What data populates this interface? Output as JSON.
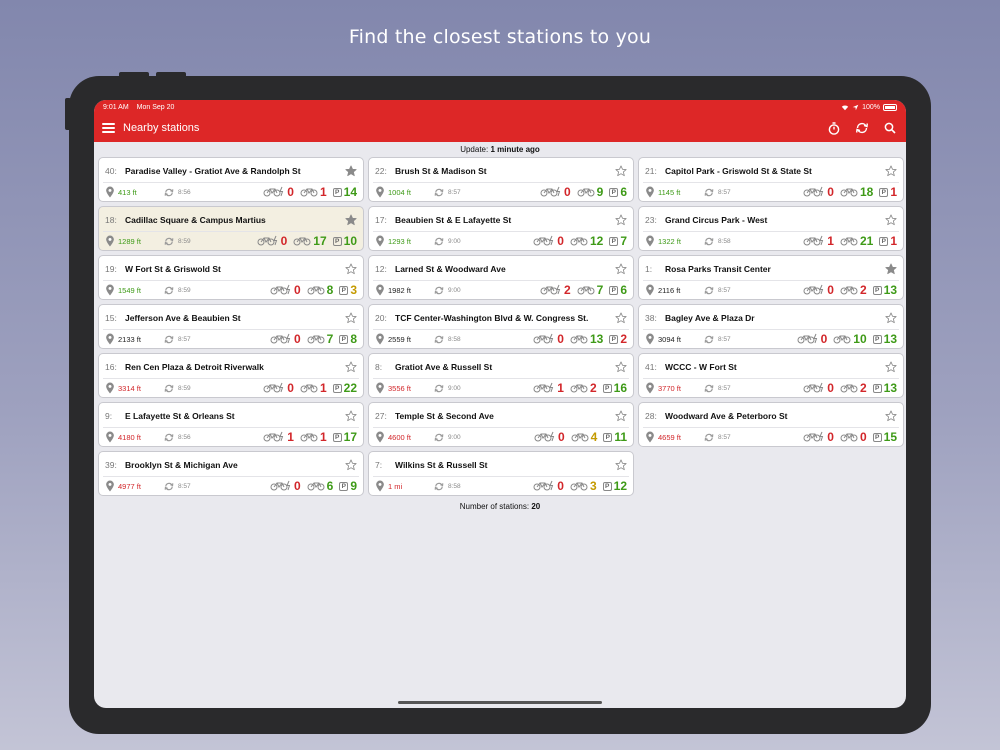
{
  "headline": "Find the closest stations to you",
  "status_bar": {
    "time": "9:01 AM",
    "date": "Mon Sep 20",
    "battery": "100%"
  },
  "app_bar": {
    "title": "Nearby stations"
  },
  "update": {
    "label": "Update:",
    "value": "1 minute ago"
  },
  "footer": {
    "label": "Number of stations:",
    "value": "20"
  },
  "colors": {
    "brand": "#dd2727",
    "good": "#3e9a17",
    "bad": "#d2262a",
    "warn": "#c49a00"
  },
  "stations": [
    {
      "num": "40:",
      "name": "Paradise Valley - Gratiot Ave & Randolph St",
      "dist": "413 ft",
      "dist_color": "green",
      "time": "8:56",
      "ebikes": "0",
      "ebikes_color": "red",
      "bikes": "1",
      "bikes_color": "red",
      "docks": "14",
      "docks_color": "green",
      "fav": true,
      "highlight": false
    },
    {
      "num": "18:",
      "name": "Cadillac Square & Campus Martius",
      "dist": "1289 ft",
      "dist_color": "green",
      "time": "8:59",
      "ebikes": "0",
      "ebikes_color": "red",
      "bikes": "17",
      "bikes_color": "green",
      "docks": "10",
      "docks_color": "green",
      "fav": true,
      "highlight": true
    },
    {
      "num": "19:",
      "name": "W Fort St & Griswold St",
      "dist": "1549 ft",
      "dist_color": "green",
      "time": "8:59",
      "ebikes": "0",
      "ebikes_color": "red",
      "bikes": "8",
      "bikes_color": "green",
      "docks": "3",
      "docks_color": "warn",
      "fav": false,
      "highlight": false
    },
    {
      "num": "15:",
      "name": "Jefferson Ave & Beaubien St",
      "dist": "2133 ft",
      "dist_color": "black",
      "time": "8:57",
      "ebikes": "0",
      "ebikes_color": "red",
      "bikes": "7",
      "bikes_color": "green",
      "docks": "8",
      "docks_color": "green",
      "fav": false,
      "highlight": false
    },
    {
      "num": "16:",
      "name": "Ren Cen Plaza & Detroit Riverwalk",
      "dist": "3314 ft",
      "dist_color": "red",
      "time": "8:59",
      "ebikes": "0",
      "ebikes_color": "red",
      "bikes": "1",
      "bikes_color": "red",
      "docks": "22",
      "docks_color": "green",
      "fav": false,
      "highlight": false
    },
    {
      "num": "9:",
      "name": "E Lafayette St & Orleans St",
      "dist": "4180 ft",
      "dist_color": "red",
      "time": "8:56",
      "ebikes": "1",
      "ebikes_color": "red",
      "bikes": "1",
      "bikes_color": "red",
      "docks": "17",
      "docks_color": "green",
      "fav": false,
      "highlight": false
    },
    {
      "num": "39:",
      "name": "Brooklyn St & Michigan Ave",
      "dist": "4977 ft",
      "dist_color": "red",
      "time": "8:57",
      "ebikes": "0",
      "ebikes_color": "red",
      "bikes": "6",
      "bikes_color": "green",
      "docks": "9",
      "docks_color": "green",
      "fav": false,
      "highlight": false
    },
    {
      "num": "22:",
      "name": "Brush St & Madison St",
      "dist": "1004 ft",
      "dist_color": "green",
      "time": "8:57",
      "ebikes": "0",
      "ebikes_color": "red",
      "bikes": "9",
      "bikes_color": "green",
      "docks": "6",
      "docks_color": "green",
      "fav": false,
      "highlight": false
    },
    {
      "num": "17:",
      "name": "Beaubien St & E Lafayette St",
      "dist": "1293 ft",
      "dist_color": "green",
      "time": "9:00",
      "ebikes": "0",
      "ebikes_color": "red",
      "bikes": "12",
      "bikes_color": "green",
      "docks": "7",
      "docks_color": "green",
      "fav": false,
      "highlight": false
    },
    {
      "num": "12:",
      "name": "Larned St & Woodward Ave",
      "dist": "1982 ft",
      "dist_color": "black",
      "time": "9:00",
      "ebikes": "2",
      "ebikes_color": "red",
      "bikes": "7",
      "bikes_color": "green",
      "docks": "6",
      "docks_color": "green",
      "fav": false,
      "highlight": false
    },
    {
      "num": "20:",
      "name": "TCF Center-Washington Blvd & W. Congress St.",
      "dist": "2559 ft",
      "dist_color": "black",
      "time": "8:58",
      "ebikes": "0",
      "ebikes_color": "red",
      "bikes": "13",
      "bikes_color": "green",
      "docks": "2",
      "docks_color": "red",
      "fav": false,
      "highlight": false
    },
    {
      "num": "8:",
      "name": "Gratiot Ave & Russell St",
      "dist": "3556 ft",
      "dist_color": "red",
      "time": "9:00",
      "ebikes": "1",
      "ebikes_color": "red",
      "bikes": "2",
      "bikes_color": "red",
      "docks": "16",
      "docks_color": "green",
      "fav": false,
      "highlight": false
    },
    {
      "num": "27:",
      "name": "Temple St & Second Ave",
      "dist": "4600 ft",
      "dist_color": "red",
      "time": "9:00",
      "ebikes": "0",
      "ebikes_color": "red",
      "bikes": "4",
      "bikes_color": "warn",
      "docks": "11",
      "docks_color": "green",
      "fav": false,
      "highlight": false
    },
    {
      "num": "7:",
      "name": "Wilkins St & Russell St",
      "dist": "1 mi",
      "dist_color": "red",
      "time": "8:58",
      "ebikes": "0",
      "ebikes_color": "red",
      "bikes": "3",
      "bikes_color": "warn",
      "docks": "12",
      "docks_color": "green",
      "fav": false,
      "highlight": false
    },
    {
      "num": "21:",
      "name": "Capitol Park - Griswold St & State St",
      "dist": "1145 ft",
      "dist_color": "green",
      "time": "8:57",
      "ebikes": "0",
      "ebikes_color": "red",
      "bikes": "18",
      "bikes_color": "green",
      "docks": "1",
      "docks_color": "red",
      "fav": false,
      "highlight": false
    },
    {
      "num": "23:",
      "name": "Grand Circus Park - West",
      "dist": "1322 ft",
      "dist_color": "green",
      "time": "8:58",
      "ebikes": "1",
      "ebikes_color": "red",
      "bikes": "21",
      "bikes_color": "green",
      "docks": "1",
      "docks_color": "red",
      "fav": false,
      "highlight": false
    },
    {
      "num": "1:",
      "name": "Rosa Parks Transit Center",
      "dist": "2116 ft",
      "dist_color": "black",
      "time": "8:57",
      "ebikes": "0",
      "ebikes_color": "red",
      "bikes": "2",
      "bikes_color": "red",
      "docks": "13",
      "docks_color": "green",
      "fav": true,
      "highlight": false
    },
    {
      "num": "38:",
      "name": "Bagley Ave & Plaza Dr",
      "dist": "3094 ft",
      "dist_color": "black",
      "time": "8:57",
      "ebikes": "0",
      "ebikes_color": "red",
      "bikes": "10",
      "bikes_color": "green",
      "docks": "13",
      "docks_color": "green",
      "fav": false,
      "highlight": false
    },
    {
      "num": "41:",
      "name": "WCCC - W Fort St",
      "dist": "3770 ft",
      "dist_color": "red",
      "time": "8:57",
      "ebikes": "0",
      "ebikes_color": "red",
      "bikes": "2",
      "bikes_color": "red",
      "docks": "13",
      "docks_color": "green",
      "fav": false,
      "highlight": false
    },
    {
      "num": "28:",
      "name": "Woodward Ave & Peterboro St",
      "dist": "4659 ft",
      "dist_color": "red",
      "time": "8:57",
      "ebikes": "0",
      "ebikes_color": "red",
      "bikes": "0",
      "bikes_color": "red",
      "docks": "15",
      "docks_color": "green",
      "fav": false,
      "highlight": false
    }
  ]
}
